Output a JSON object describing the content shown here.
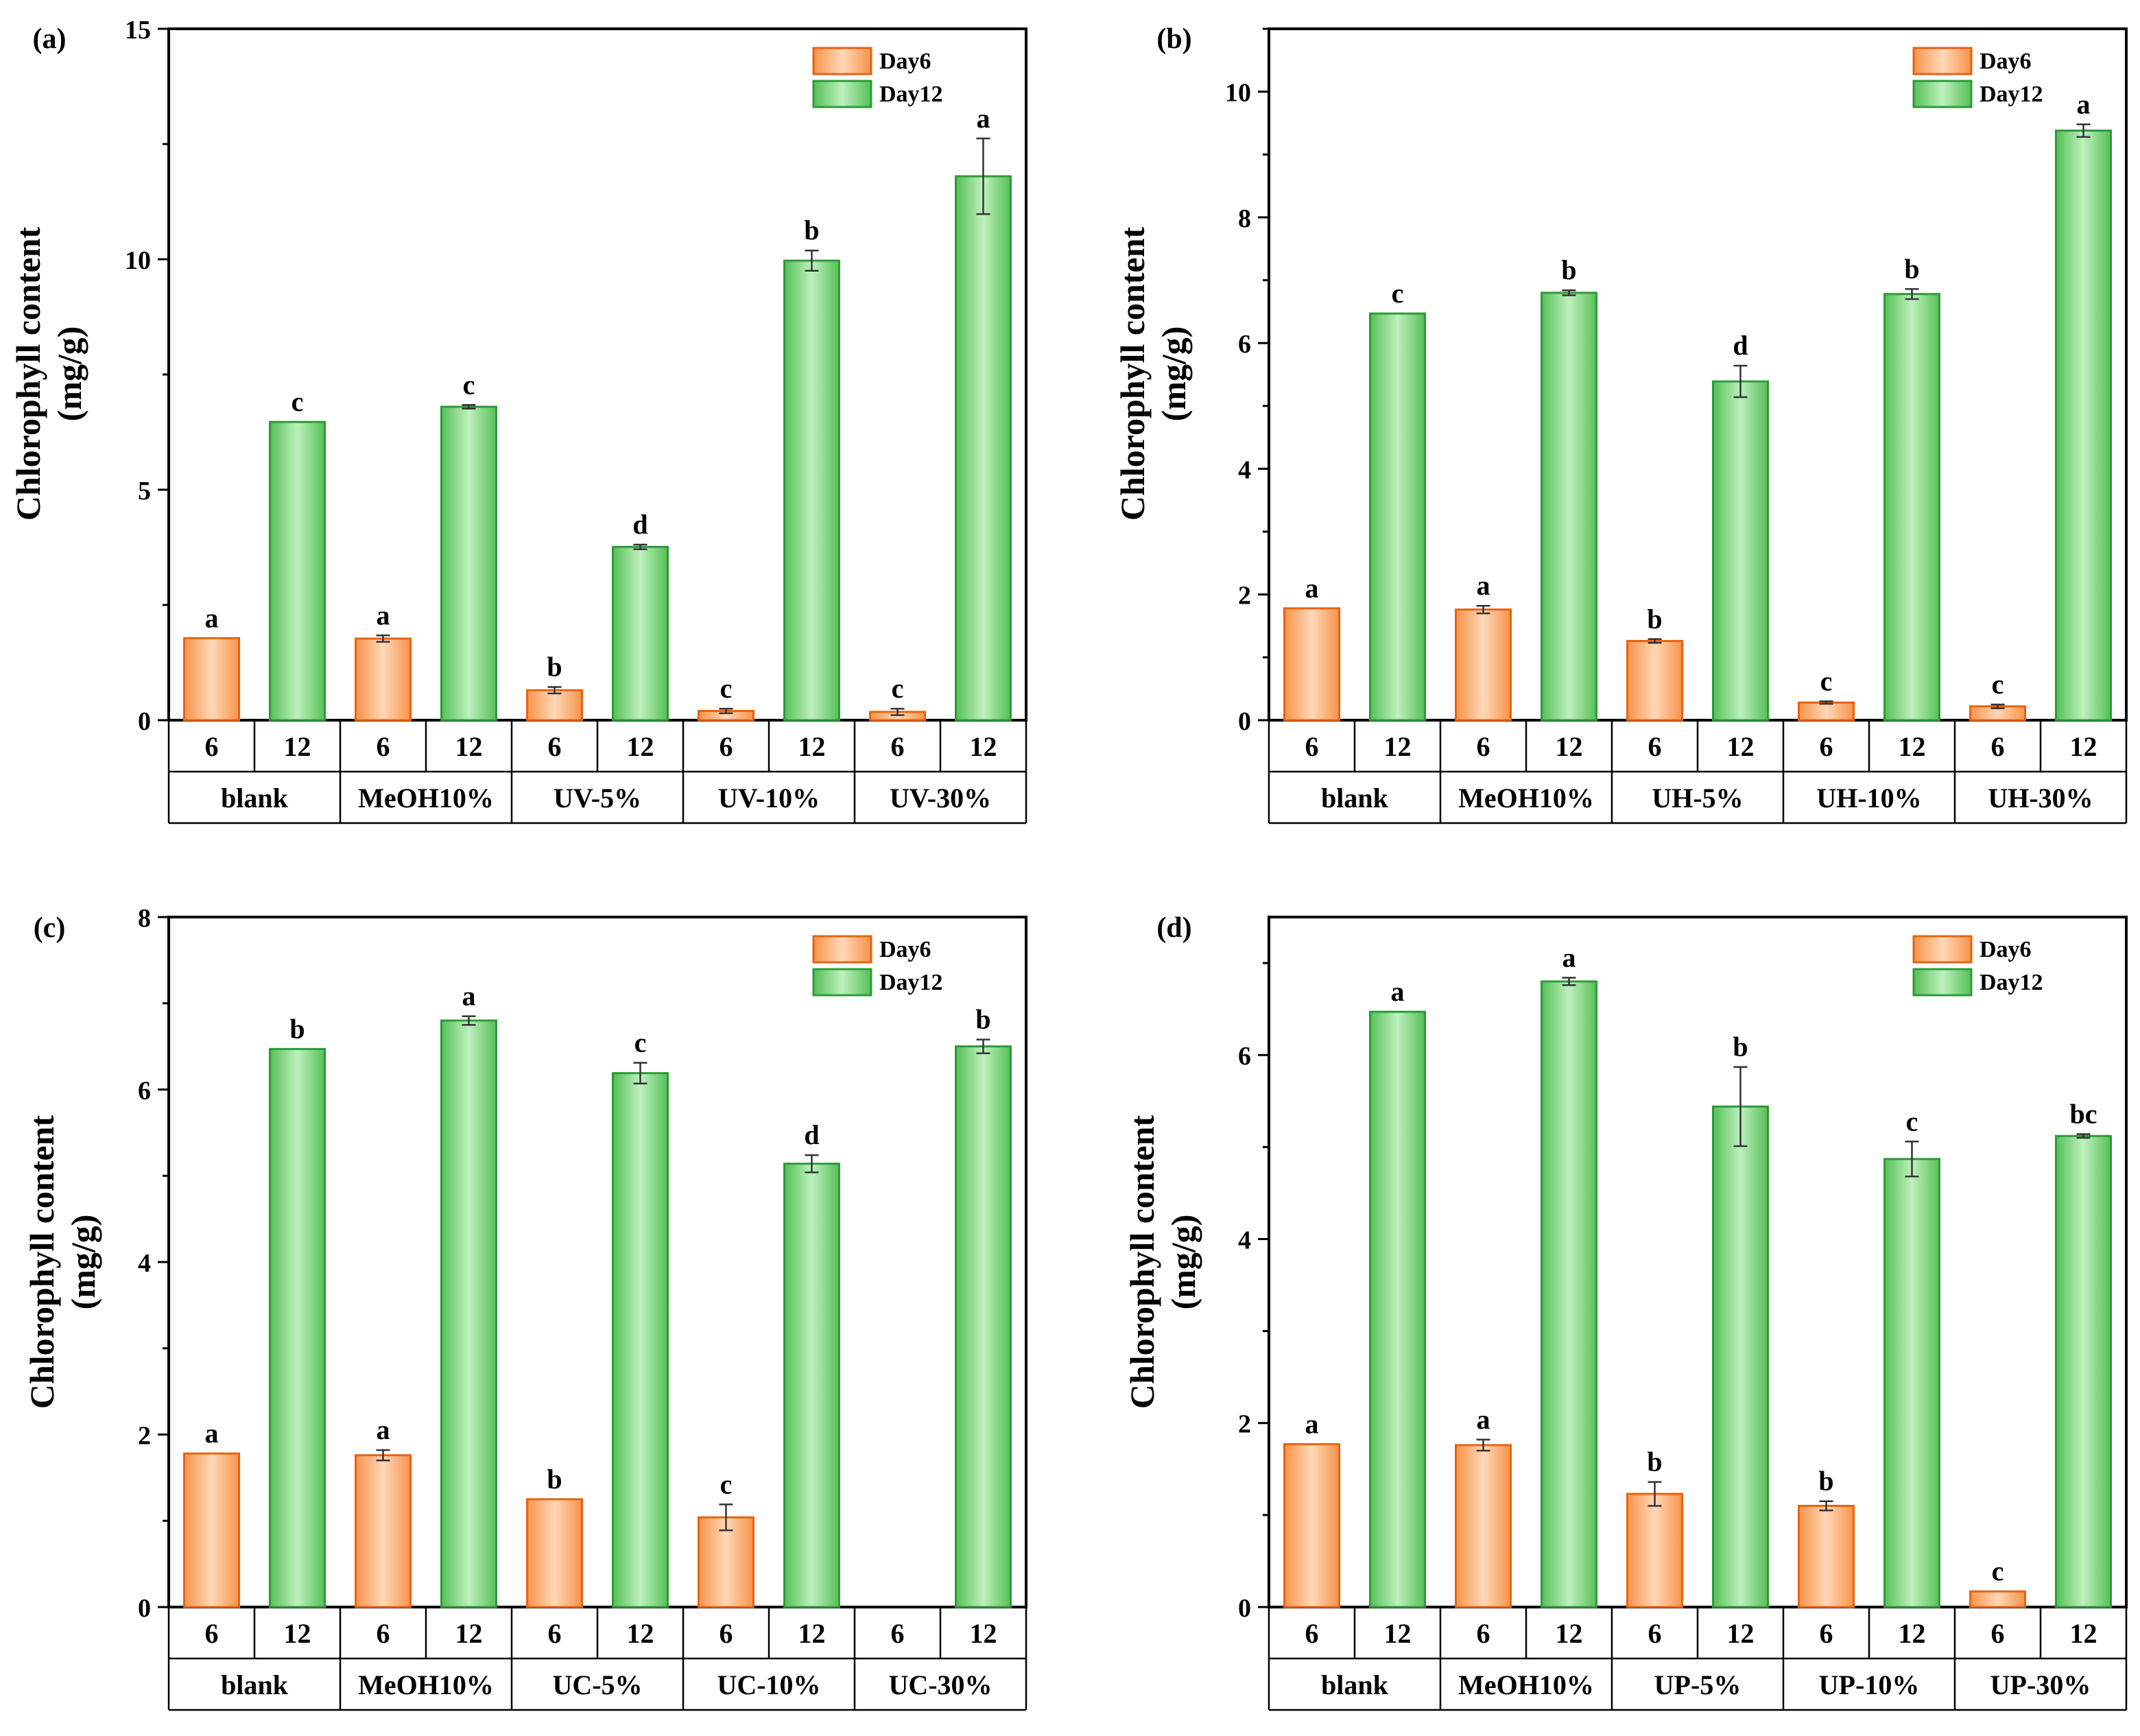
{
  "figure": {
    "legend": [
      "Day6",
      "Day12"
    ],
    "ylabel_line1": "Chlorophyll content",
    "ylabel_line2": "(mg/g)",
    "colors": {
      "day6_fill": "#f9a66c",
      "day6_edge": "#e8630f",
      "day6_light": "#ffd8b8",
      "day12_fill": "#6fcf6f",
      "day12_edge": "#2e9a3a",
      "day12_light": "#bff0bf"
    }
  },
  "chart_data": [
    {
      "panel": "(a)",
      "type": "bar",
      "categories": [
        "blank",
        "MeOH10%",
        "UV-5%",
        "UV-10%",
        "UV-30%"
      ],
      "day_labels": [
        "6",
        "12"
      ],
      "series": [
        {
          "name": "Day6",
          "values": [
            1.78,
            1.77,
            0.65,
            0.2,
            0.18
          ],
          "errors": [
            0.0,
            0.07,
            0.07,
            0.05,
            0.07
          ],
          "letters": [
            "a",
            "a",
            "b",
            "c",
            "c"
          ]
        },
        {
          "name": "Day12",
          "values": [
            6.47,
            6.8,
            3.76,
            9.97,
            11.8
          ],
          "errors": [
            0.0,
            0.04,
            0.05,
            0.22,
            0.82
          ],
          "letters": [
            "c",
            "c",
            "d",
            "b",
            "a"
          ]
        }
      ],
      "ylim": [
        0,
        15
      ],
      "yticks": [
        0,
        5,
        10,
        15
      ],
      "minor_tick_step": 2.5,
      "legend_position": "top-right",
      "ylabel": "Chlorophyll content (mg/g)"
    },
    {
      "panel": "(b)",
      "type": "bar",
      "categories": [
        "blank",
        "MeOH10%",
        "UH-5%",
        "UH-10%",
        "UH-30%"
      ],
      "day_labels": [
        "6",
        "12"
      ],
      "series": [
        {
          "name": "Day6",
          "values": [
            1.78,
            1.76,
            1.26,
            0.28,
            0.22
          ],
          "errors": [
            0.0,
            0.06,
            0.03,
            0.02,
            0.03
          ],
          "letters": [
            "a",
            "a",
            "b",
            "c",
            "c"
          ]
        },
        {
          "name": "Day12",
          "values": [
            6.47,
            6.8,
            5.39,
            6.78,
            9.38
          ],
          "errors": [
            0.0,
            0.04,
            0.25,
            0.08,
            0.1
          ],
          "letters": [
            "c",
            "b",
            "d",
            "b",
            "a"
          ]
        }
      ],
      "ylim": [
        0,
        11
      ],
      "yticks": [
        0,
        2,
        4,
        6,
        8,
        10
      ],
      "minor_tick_step": 1,
      "legend_position": "top-right",
      "ylabel": "Chlorophyll content (mg/g)"
    },
    {
      "panel": "(c)",
      "type": "bar",
      "categories": [
        "blank",
        "MeOH10%",
        "UC-5%",
        "UC-10%",
        "UC-30%"
      ],
      "day_labels": [
        "6",
        "12"
      ],
      "series": [
        {
          "name": "Day6",
          "values": [
            1.78,
            1.76,
            1.25,
            1.04,
            0
          ],
          "errors": [
            0.0,
            0.06,
            0.0,
            0.15,
            0.0
          ],
          "letters": [
            "a",
            "a",
            "b",
            "c",
            ""
          ]
        },
        {
          "name": "Day12",
          "values": [
            6.47,
            6.8,
            6.19,
            5.14,
            6.5
          ],
          "errors": [
            0.0,
            0.05,
            0.12,
            0.1,
            0.08
          ],
          "letters": [
            "b",
            "a",
            "c",
            "d",
            "b"
          ]
        }
      ],
      "ylim": [
        0,
        8
      ],
      "yticks": [
        0,
        2,
        4,
        6,
        8
      ],
      "minor_tick_step": 1,
      "legend_position": "top-right",
      "ylabel": "Chlorophyll content (mg/g)"
    },
    {
      "panel": "(d)",
      "type": "bar",
      "categories": [
        "blank",
        "MeOH10%",
        "UP-5%",
        "UP-10%",
        "UP-30%"
      ],
      "day_labels": [
        "6",
        "12"
      ],
      "series": [
        {
          "name": "Day6",
          "values": [
            1.77,
            1.76,
            1.23,
            1.1,
            0.17
          ],
          "errors": [
            0.0,
            0.06,
            0.13,
            0.05,
            0.0
          ],
          "letters": [
            "a",
            "a",
            "b",
            "b",
            "c"
          ]
        },
        {
          "name": "Day12",
          "values": [
            6.47,
            6.8,
            5.44,
            4.87,
            5.12
          ],
          "errors": [
            0.0,
            0.04,
            0.43,
            0.19,
            0.02
          ],
          "letters": [
            "a",
            "a",
            "b",
            "c",
            "bc"
          ]
        }
      ],
      "ylim": [
        0,
        7.5
      ],
      "yticks": [
        0,
        2,
        4,
        6
      ],
      "minor_tick_step": 1,
      "legend_position": "top-right",
      "ylabel": "Chlorophyll content (mg/g)"
    }
  ]
}
